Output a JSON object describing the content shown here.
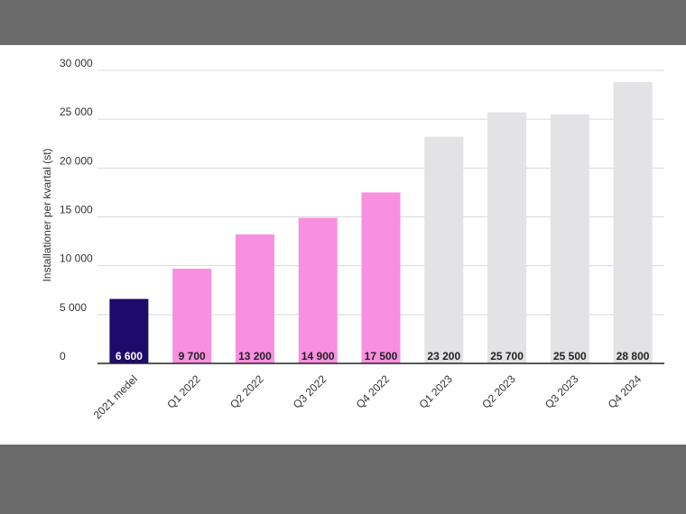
{
  "chart_data": {
    "type": "bar",
    "title": "",
    "xlabel": "",
    "ylabel": "Installationer per kvartal (st)",
    "ylim": [
      0,
      30000
    ],
    "yticks": [
      0,
      5000,
      10000,
      15000,
      20000,
      25000,
      30000
    ],
    "ytick_labels": [
      "0",
      "5 000",
      "10 000",
      "15 000",
      "20 000",
      "25 000",
      "30 000"
    ],
    "categories": [
      "2021 medel",
      "Q1 2022",
      "Q2 2022",
      "Q3 2022",
      "Q4 2022",
      "Q1 2023",
      "Q2 2023",
      "Q3 2023",
      "Q4 2024"
    ],
    "values": [
      6600,
      9700,
      13200,
      14900,
      17500,
      23200,
      25700,
      25500,
      28800
    ],
    "value_labels": [
      "6 600",
      "9 700",
      "13 200",
      "14 900",
      "17 500",
      "23 200",
      "25 700",
      "25 500",
      "28 800"
    ],
    "bar_colors": [
      "#1e0b6b",
      "#f98fe0",
      "#f98fe0",
      "#f98fe0",
      "#f98fe0",
      "#e3e3e6",
      "#e3e3e6",
      "#e3e3e6",
      "#e3e3e6"
    ],
    "label_colors": [
      "#ffffff",
      "#222222",
      "#222222",
      "#222222",
      "#222222",
      "#222222",
      "#222222",
      "#222222",
      "#222222"
    ],
    "grid": true,
    "legend": "none"
  }
}
